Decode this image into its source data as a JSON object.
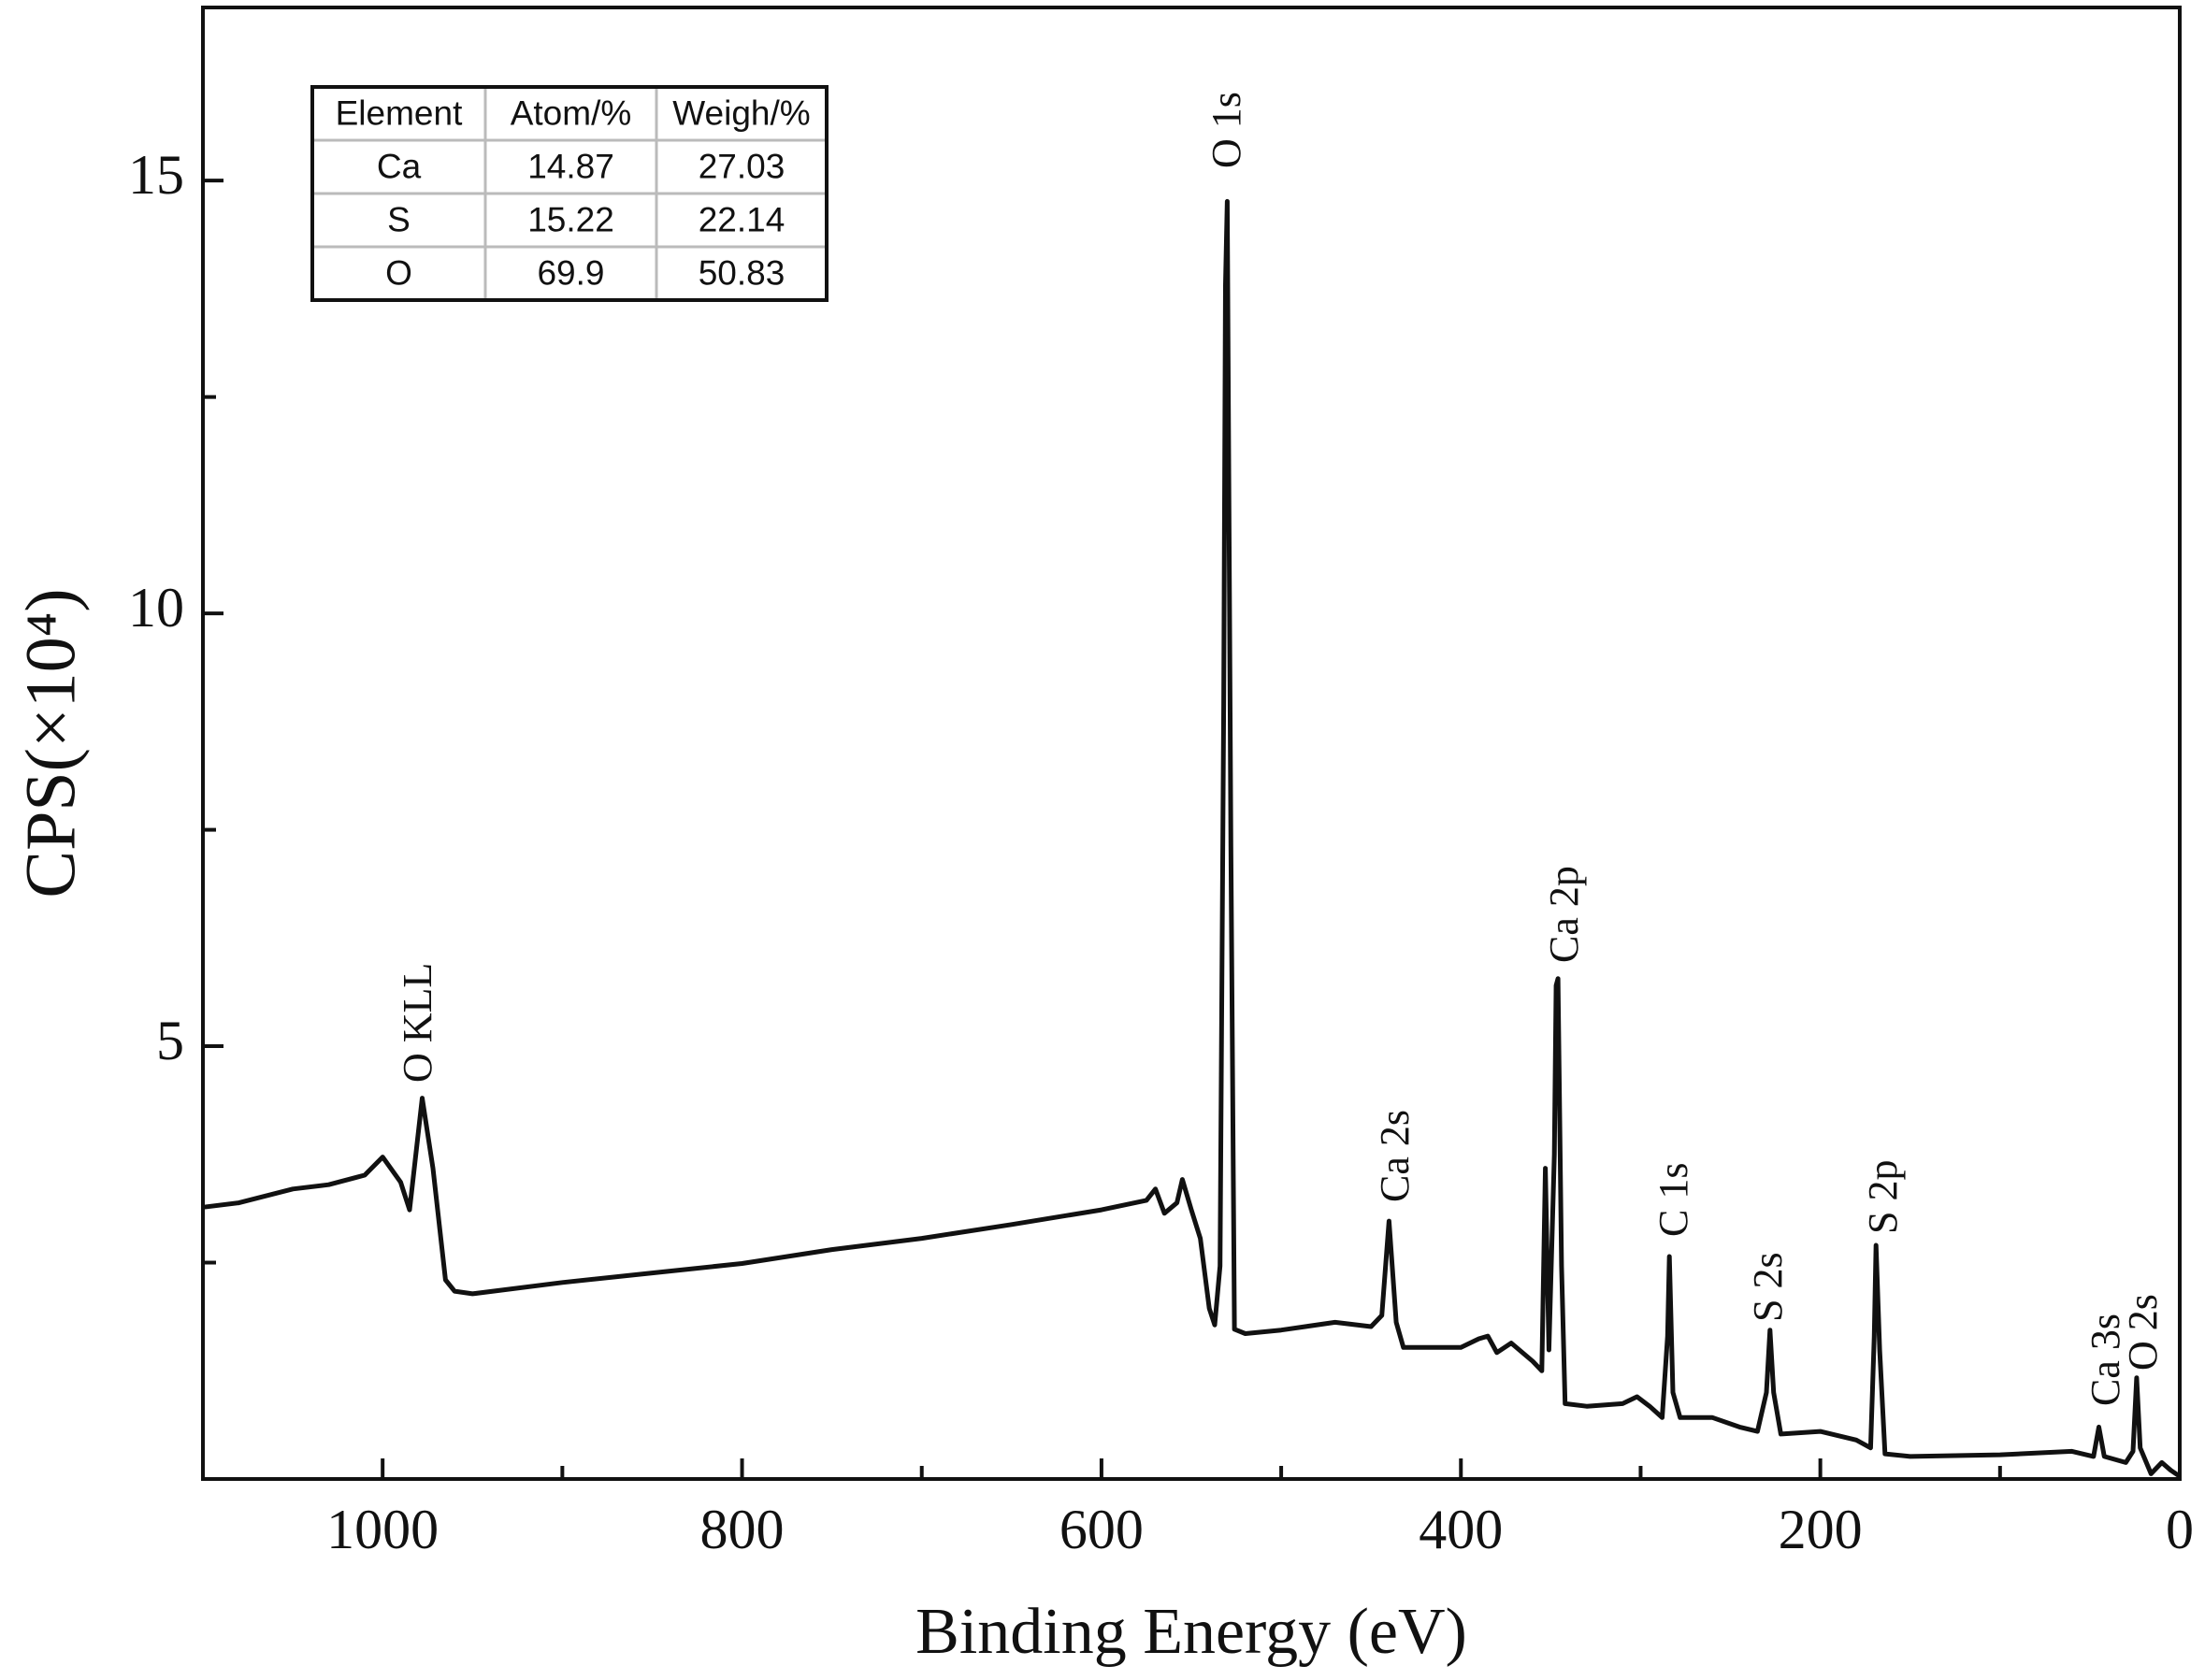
{
  "chart_data": {
    "type": "line",
    "x_label": "Binding Energy (eV)",
    "y_label": "CPS(×10⁴)",
    "x": [
      1100,
      1080,
      1050,
      1030,
      1010,
      1000,
      990,
      985,
      978,
      972,
      965,
      960,
      950,
      900,
      850,
      800,
      750,
      700,
      650,
      600,
      575,
      570,
      565,
      558,
      555,
      550,
      545,
      540,
      537,
      534,
      532,
      531,
      530,
      528,
      526,
      520,
      500,
      470,
      450,
      444,
      440,
      436,
      432,
      400,
      390,
      385,
      380,
      372,
      360,
      355,
      353,
      351,
      348,
      347,
      346,
      344,
      342,
      330,
      310,
      302,
      295,
      288,
      285,
      284,
      282,
      278,
      260,
      245,
      235,
      230,
      228,
      226,
      222,
      200,
      180,
      172,
      170,
      169,
      167,
      164,
      150,
      100,
      60,
      48,
      45,
      42,
      30,
      26,
      24,
      22,
      16,
      10,
      5,
      0
    ],
    "values": [
      3.14,
      3.19,
      3.35,
      3.4,
      3.51,
      3.72,
      3.43,
      3.11,
      4.4,
      3.59,
      2.3,
      2.17,
      2.14,
      2.27,
      2.38,
      2.49,
      2.65,
      2.78,
      2.94,
      3.11,
      3.22,
      3.35,
      3.07,
      3.19,
      3.46,
      3.11,
      2.78,
      1.97,
      1.78,
      2.46,
      8.93,
      13.79,
      14.76,
      7.31,
      1.73,
      1.68,
      1.72,
      1.81,
      1.76,
      1.89,
      2.98,
      1.81,
      1.52,
      1.52,
      1.62,
      1.65,
      1.46,
      1.57,
      1.36,
      1.25,
      3.59,
      1.49,
      3.75,
      5.7,
      5.78,
      2.46,
      0.87,
      0.84,
      0.87,
      0.95,
      0.84,
      0.71,
      1.65,
      2.57,
      1.0,
      0.71,
      0.71,
      0.6,
      0.55,
      1.0,
      1.72,
      1.0,
      0.52,
      0.55,
      0.45,
      0.36,
      1.65,
      2.7,
      1.49,
      0.29,
      0.26,
      0.28,
      0.32,
      0.26,
      0.6,
      0.26,
      0.19,
      0.32,
      1.17,
      0.36,
      0.06,
      0.19,
      0.1,
      0.03
    ],
    "color": "#111111",
    "xlim": [
      1100,
      0
    ],
    "ylim": [
      0,
      17
    ],
    "xticks": [
      0,
      200,
      400,
      600,
      800,
      1000
    ],
    "xminor": [
      100,
      300,
      500,
      700,
      900
    ],
    "yticks": [
      5,
      10,
      15
    ],
    "yminor": [
      2.5,
      7.5,
      12.5
    ],
    "annotations": [
      "O KLL",
      "O 1s",
      "Ca 2s",
      "Ca 2p",
      "C 1s",
      "S 2s",
      "S 2p",
      "Ca 3s",
      "O 2s"
    ],
    "table": {
      "columns": [
        "Element",
        "Atom/%",
        "Weigh/%"
      ],
      "rows": [
        [
          "Ca",
          "14.87",
          "27.03"
        ],
        [
          "S",
          "15.22",
          "22.14"
        ],
        [
          "O",
          "69.9",
          "50.83"
        ]
      ]
    }
  }
}
